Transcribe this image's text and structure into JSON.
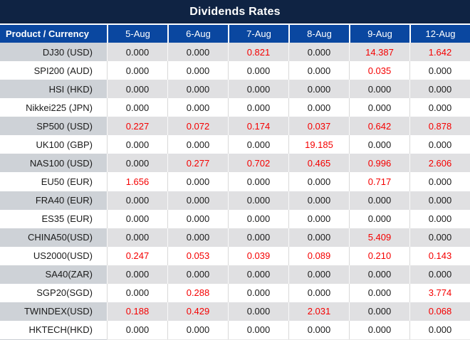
{
  "title": "Dividends Rates",
  "table": {
    "product_header": "Product / Currency",
    "date_headers": [
      "5-Aug",
      "6-Aug",
      "7-Aug",
      "8-Aug",
      "9-Aug",
      "12-Aug"
    ],
    "rows": [
      {
        "product": "DJ30 (USD)",
        "values": [
          "0.000",
          "0.000",
          "0.821",
          "0.000",
          "14.387",
          "1.642"
        ],
        "red": [
          false,
          false,
          true,
          false,
          true,
          true
        ]
      },
      {
        "product": "SPI200 (AUD)",
        "values": [
          "0.000",
          "0.000",
          "0.000",
          "0.000",
          "0.035",
          "0.000"
        ],
        "red": [
          false,
          false,
          false,
          false,
          true,
          false
        ]
      },
      {
        "product": "HSI (HKD)",
        "values": [
          "0.000",
          "0.000",
          "0.000",
          "0.000",
          "0.000",
          "0.000"
        ],
        "red": [
          false,
          false,
          false,
          false,
          false,
          false
        ]
      },
      {
        "product": "Nikkei225 (JPN)",
        "values": [
          "0.000",
          "0.000",
          "0.000",
          "0.000",
          "0.000",
          "0.000"
        ],
        "red": [
          false,
          false,
          false,
          false,
          false,
          false
        ]
      },
      {
        "product": "SP500 (USD)",
        "values": [
          "0.227",
          "0.072",
          "0.174",
          "0.037",
          "0.642",
          "0.878"
        ],
        "red": [
          true,
          true,
          true,
          true,
          true,
          true
        ]
      },
      {
        "product": "UK100 (GBP)",
        "values": [
          "0.000",
          "0.000",
          "0.000",
          "19.185",
          "0.000",
          "0.000"
        ],
        "red": [
          false,
          false,
          false,
          true,
          false,
          false
        ]
      },
      {
        "product": "NAS100 (USD)",
        "values": [
          "0.000",
          "0.277",
          "0.702",
          "0.465",
          "0.996",
          "2.606"
        ],
        "red": [
          false,
          true,
          true,
          true,
          true,
          true
        ]
      },
      {
        "product": "EU50 (EUR)",
        "values": [
          "1.656",
          "0.000",
          "0.000",
          "0.000",
          "0.717",
          "0.000"
        ],
        "red": [
          true,
          false,
          false,
          false,
          true,
          false
        ]
      },
      {
        "product": "FRA40 (EUR)",
        "values": [
          "0.000",
          "0.000",
          "0.000",
          "0.000",
          "0.000",
          "0.000"
        ],
        "red": [
          false,
          false,
          false,
          false,
          false,
          false
        ]
      },
      {
        "product": "ES35 (EUR)",
        "values": [
          "0.000",
          "0.000",
          "0.000",
          "0.000",
          "0.000",
          "0.000"
        ],
        "red": [
          false,
          false,
          false,
          false,
          false,
          false
        ]
      },
      {
        "product": "CHINA50(USD)",
        "values": [
          "0.000",
          "0.000",
          "0.000",
          "0.000",
          "5.409",
          "0.000"
        ],
        "red": [
          false,
          false,
          false,
          false,
          true,
          false
        ]
      },
      {
        "product": "US2000(USD)",
        "values": [
          "0.247",
          "0.053",
          "0.039",
          "0.089",
          "0.210",
          "0.143"
        ],
        "red": [
          true,
          true,
          true,
          true,
          true,
          true
        ]
      },
      {
        "product": "SA40(ZAR)",
        "values": [
          "0.000",
          "0.000",
          "0.000",
          "0.000",
          "0.000",
          "0.000"
        ],
        "red": [
          false,
          false,
          false,
          false,
          false,
          false
        ]
      },
      {
        "product": "SGP20(SGD)",
        "values": [
          "0.000",
          "0.288",
          "0.000",
          "0.000",
          "0.000",
          "3.774"
        ],
        "red": [
          false,
          true,
          false,
          false,
          false,
          true
        ]
      },
      {
        "product": "TWINDEX(USD)",
        "values": [
          "0.188",
          "0.429",
          "0.000",
          "2.031",
          "0.000",
          "0.068"
        ],
        "red": [
          true,
          true,
          false,
          true,
          false,
          true
        ]
      },
      {
        "product": "HKTECH(HKD)",
        "values": [
          "0.000",
          "0.000",
          "0.000",
          "0.000",
          "0.000",
          "0.000"
        ],
        "red": [
          false,
          false,
          false,
          false,
          false,
          false
        ]
      }
    ]
  },
  "colors": {
    "title_bg": "#0f2343",
    "header_bg": "#0a47a0",
    "alt_row_product_bg": "#ced2d7",
    "alt_row_value_bg": "#e0e0e2",
    "red_value": "#f50000",
    "value_text": "#1b1b1b"
  }
}
